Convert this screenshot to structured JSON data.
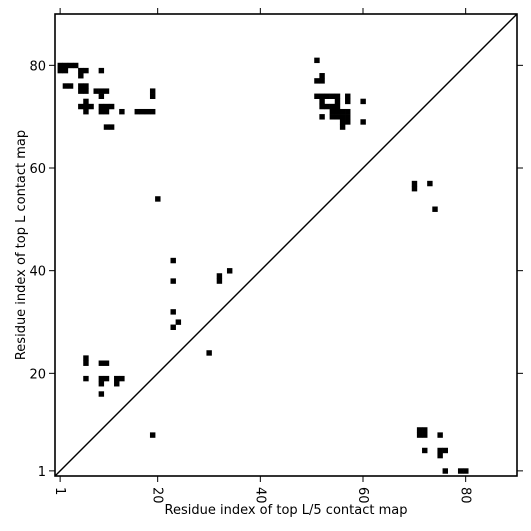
{
  "chart_data": {
    "type": "heatmap",
    "title": "",
    "xlabel": "Residue index of top L/5 contact map",
    "ylabel": "Residue index of top L contact map",
    "xlim": [
      0,
      90
    ],
    "ylim": [
      0,
      90
    ],
    "x_ticks": [
      1,
      20,
      40,
      60,
      80
    ],
    "y_ticks": [
      1,
      20,
      40,
      60,
      80
    ],
    "diagonal": true,
    "cell_color": "#000000",
    "upper_left_contacts": [
      [
        1,
        79
      ],
      [
        1,
        80
      ],
      [
        2,
        79
      ],
      [
        2,
        80
      ],
      [
        3,
        80
      ],
      [
        4,
        80
      ],
      [
        2,
        76
      ],
      [
        3,
        76
      ],
      [
        5,
        79
      ],
      [
        5,
        78
      ],
      [
        6,
        79
      ],
      [
        5,
        76
      ],
      [
        5,
        75
      ],
      [
        6,
        76
      ],
      [
        6,
        75
      ],
      [
        5,
        72
      ],
      [
        6,
        72
      ],
      [
        6,
        73
      ],
      [
        6,
        71
      ],
      [
        7,
        72
      ],
      [
        8,
        75
      ],
      [
        9,
        75
      ],
      [
        10,
        75
      ],
      [
        9,
        79
      ],
      [
        9,
        74
      ],
      [
        9,
        72
      ],
      [
        9,
        71
      ],
      [
        10,
        72
      ],
      [
        10,
        71
      ],
      [
        11,
        72
      ],
      [
        10,
        68
      ],
      [
        11,
        68
      ],
      [
        13,
        71
      ],
      [
        16,
        71
      ],
      [
        17,
        71
      ],
      [
        18,
        71
      ],
      [
        19,
        71
      ],
      [
        19,
        74
      ],
      [
        19,
        75
      ],
      [
        20,
        54
      ],
      [
        23,
        42
      ],
      [
        23,
        38
      ],
      [
        32,
        39
      ],
      [
        32,
        38
      ],
      [
        34,
        40
      ],
      [
        23,
        32
      ],
      [
        24,
        30
      ],
      [
        23,
        29
      ],
      [
        30,
        24
      ],
      [
        6,
        23
      ],
      [
        6,
        22
      ],
      [
        9,
        22
      ],
      [
        10,
        22
      ],
      [
        6,
        19
      ],
      [
        9,
        19
      ],
      [
        10,
        19
      ],
      [
        9,
        18
      ],
      [
        12,
        19
      ],
      [
        13,
        19
      ],
      [
        12,
        18
      ],
      [
        9,
        16
      ],
      [
        19,
        8
      ],
      [
        51,
        81
      ],
      [
        52,
        78
      ],
      [
        51,
        77
      ],
      [
        52,
        77
      ],
      [
        51,
        74
      ],
      [
        52,
        74
      ],
      [
        53,
        74
      ],
      [
        54,
        74
      ],
      [
        55,
        74
      ],
      [
        57,
        74
      ],
      [
        57,
        73
      ],
      [
        60,
        73
      ],
      [
        52,
        73
      ],
      [
        52,
        72
      ],
      [
        53,
        72
      ],
      [
        54,
        72
      ],
      [
        55,
        72
      ],
      [
        55,
        73
      ],
      [
        54,
        71
      ],
      [
        55,
        71
      ],
      [
        56,
        71
      ],
      [
        57,
        71
      ],
      [
        54,
        70
      ],
      [
        55,
        70
      ],
      [
        56,
        70
      ],
      [
        57,
        70
      ],
      [
        56,
        69
      ],
      [
        57,
        69
      ],
      [
        56,
        68
      ],
      [
        52,
        70
      ],
      [
        60,
        69
      ],
      [
        70,
        57
      ],
      [
        70,
        56
      ],
      [
        73,
        57
      ],
      [
        74,
        52
      ]
    ],
    "lower_right_contacts": [
      [
        71,
        9
      ],
      [
        72,
        9
      ],
      [
        71,
        8
      ],
      [
        72,
        8
      ],
      [
        75,
        8
      ],
      [
        72,
        5
      ],
      [
        75,
        5
      ],
      [
        76,
        5
      ],
      [
        75,
        4
      ],
      [
        76,
        1
      ],
      [
        79,
        1
      ],
      [
        80,
        1
      ]
    ]
  }
}
